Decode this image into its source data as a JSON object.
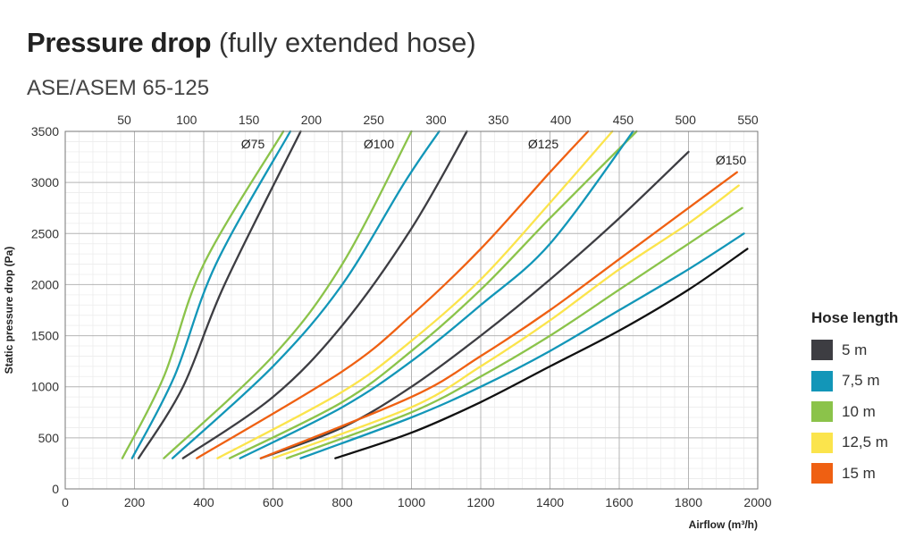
{
  "title": {
    "bold": "Pressure drop",
    "rest": " (fully extended hose)"
  },
  "subtitle": "ASE/ASEM 65-125",
  "legend": {
    "title": "Hose length",
    "items": [
      {
        "label": "5 m",
        "color": "#3d3d42"
      },
      {
        "label": "7,5 m",
        "color": "#1296b8"
      },
      {
        "label": "10 m",
        "color": "#8bc34a"
      },
      {
        "label": "12,5 m",
        "color": "#fbe44c"
      },
      {
        "label": "15 m",
        "color": "#ef6012"
      }
    ]
  },
  "chart_data": {
    "type": "line",
    "xlabel": "Airflow (m³/h)",
    "ylabel": "Static pressure drop (Pa)",
    "xlim": [
      0,
      2000
    ],
    "ylim": [
      0,
      3500
    ],
    "x_ticks": [
      "0",
      "200",
      "400",
      "600",
      "800",
      "1000",
      "1200",
      "1400",
      "1600",
      "1800",
      "2000"
    ],
    "y_ticks": [
      "0",
      "500",
      "1000",
      "1500",
      "2000",
      "2500",
      "3000",
      "3500"
    ],
    "secondary_x_ticks": [
      "50",
      "100",
      "150",
      "200",
      "250",
      "300",
      "350",
      "400",
      "450",
      "500",
      "550"
    ],
    "grid": true,
    "legend_position": "right",
    "groups": [
      {
        "label": "Ø75",
        "series": [
          {
            "name": "5 m",
            "color": "#3d3d42",
            "x": [
              212,
              340,
              460,
              680
            ],
            "y": [
              300,
              1000,
              2000,
              3500
            ]
          },
          {
            "name": "7,5 m",
            "color": "#1296b8",
            "x": [
              193,
              315,
              435,
              650
            ],
            "y": [
              300,
              1100,
              2200,
              3500
            ]
          },
          {
            "name": "10 m",
            "color": "#8bc34a",
            "x": [
              165,
              285,
              400,
              630
            ],
            "y": [
              300,
              1100,
              2200,
              3500
            ]
          }
        ]
      },
      {
        "label": "Ø100",
        "series": [
          {
            "name": "5 m",
            "color": "#3d3d42",
            "x": [
              340,
              600,
              800,
              1000,
              1160
            ],
            "y": [
              300,
              900,
              1600,
              2550,
              3500
            ]
          },
          {
            "name": "7,5 m",
            "color": "#1296b8",
            "x": [
              310,
              600,
              800,
              980,
              1080
            ],
            "y": [
              300,
              1200,
              2000,
              3000,
              3500
            ]
          },
          {
            "name": "10 m",
            "color": "#8bc34a",
            "x": [
              285,
              600,
              800,
              1000
            ],
            "y": [
              300,
              1300,
              2200,
              3500
            ]
          }
        ]
      },
      {
        "label": "Ø125",
        "series": [
          {
            "name": "5 m",
            "color": "#3d3d42",
            "x": [
              565,
              800,
              1000,
              1200,
              1400,
              1600,
              1800
            ],
            "y": [
              300,
              600,
              1000,
              1500,
              2050,
              2650,
              3300
            ]
          },
          {
            "name": "7,5 m",
            "color": "#1296b8",
            "x": [
              505,
              800,
              1000,
              1200,
              1400,
              1640
            ],
            "y": [
              300,
              800,
              1250,
              1800,
              2400,
              3500
            ]
          },
          {
            "name": "10 m",
            "color": "#8bc34a",
            "x": [
              475,
              800,
              1000,
              1200,
              1400,
              1650
            ],
            "y": [
              300,
              850,
              1350,
              1950,
              2650,
              3500
            ]
          },
          {
            "name": "12,5 m",
            "color": "#fbe44c",
            "x": [
              440,
              800,
              1000,
              1200,
              1400,
              1580
            ],
            "y": [
              300,
              950,
              1450,
              2050,
              2800,
              3500
            ]
          },
          {
            "name": "15 m",
            "color": "#ef6012",
            "x": [
              380,
              800,
              1000,
              1200,
              1400,
              1510
            ],
            "y": [
              300,
              1150,
              1700,
              2350,
              3100,
              3500
            ]
          }
        ]
      },
      {
        "label": "Ø150",
        "series": [
          {
            "name": "5 m",
            "color": "#111111",
            "x": [
              780,
              1000,
              1200,
              1400,
              1600,
              1800,
              1970
            ],
            "y": [
              300,
              550,
              850,
              1200,
              1550,
              1950,
              2350
            ]
          },
          {
            "name": "7,5 m",
            "color": "#1296b8",
            "x": [
              680,
              1000,
              1200,
              1400,
              1600,
              1800,
              1960
            ],
            "y": [
              300,
              700,
              1000,
              1350,
              1750,
              2150,
              2500
            ]
          },
          {
            "name": "10 m",
            "color": "#8bc34a",
            "x": [
              640,
              1000,
              1200,
              1400,
              1600,
              1800,
              1955
            ],
            "y": [
              300,
              750,
              1100,
              1500,
              1950,
              2400,
              2750
            ]
          },
          {
            "name": "12,5 m",
            "color": "#fbe44c",
            "x": [
              600,
              1000,
              1200,
              1400,
              1600,
              1800,
              1945
            ],
            "y": [
              300,
              800,
              1200,
              1650,
              2150,
              2600,
              2970
            ]
          },
          {
            "name": "15 m",
            "color": "#ef6012",
            "x": [
              565,
              1000,
              1200,
              1400,
              1600,
              1800,
              1940
            ],
            "y": [
              300,
              900,
              1300,
              1750,
              2250,
              2750,
              3100
            ]
          }
        ]
      }
    ]
  }
}
